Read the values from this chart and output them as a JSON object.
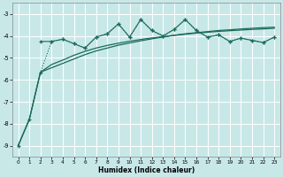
{
  "xlabel": "Humidex (Indice chaleur)",
  "bg_color": "#c8e8e8",
  "grid_color": "#ffffff",
  "line_color": "#1a6b5a",
  "xlim": [
    -0.5,
    23.5
  ],
  "ylim": [
    -9.5,
    -2.5
  ],
  "yticks": [
    -9,
    -8,
    -7,
    -6,
    -5,
    -4,
    -3
  ],
  "xticks": [
    0,
    1,
    2,
    3,
    4,
    5,
    6,
    7,
    8,
    9,
    10,
    11,
    12,
    13,
    14,
    15,
    16,
    17,
    18,
    19,
    20,
    21,
    22,
    23
  ],
  "noisy_x": [
    0,
    1,
    2,
    3,
    4,
    5,
    6,
    7,
    8,
    9,
    10,
    11,
    12,
    13,
    14,
    15,
    16,
    17,
    18,
    19,
    20,
    21,
    22,
    23
  ],
  "noisy_y": [
    -9.0,
    -7.8,
    -5.65,
    -4.25,
    -4.15,
    -4.35,
    -4.55,
    -4.05,
    -3.9,
    -3.45,
    -4.05,
    -3.25,
    -3.75,
    -4.0,
    -3.7,
    -3.25,
    -3.75,
    -4.05,
    -3.95,
    -4.25,
    -4.1,
    -4.2,
    -4.3,
    -4.05
  ],
  "smooth1_x": [
    0,
    1,
    2,
    3,
    4,
    5,
    6,
    7,
    8,
    9,
    10,
    11,
    12,
    13,
    14,
    15,
    16,
    17,
    18,
    19,
    20,
    21,
    22,
    23
  ],
  "smooth1_y": [
    -9.0,
    -7.8,
    -5.65,
    -5.45,
    -5.25,
    -5.05,
    -4.85,
    -4.68,
    -4.55,
    -4.42,
    -4.32,
    -4.22,
    -4.13,
    -4.05,
    -3.97,
    -3.9,
    -3.85,
    -3.8,
    -3.75,
    -3.72,
    -3.68,
    -3.65,
    -3.62,
    -3.6
  ],
  "flat_x": [
    2,
    3,
    4,
    5,
    6,
    7,
    8,
    9,
    10,
    11,
    12,
    13,
    14,
    15,
    16,
    17,
    18,
    19,
    20,
    21,
    22,
    23
  ],
  "flat_y": [
    -4.25,
    -4.25,
    -4.15,
    -4.35,
    -4.55,
    -4.05,
    -3.9,
    -3.45,
    -4.05,
    -3.25,
    -3.75,
    -4.0,
    -3.7,
    -3.25,
    -3.75,
    -4.05,
    -3.95,
    -4.25,
    -4.1,
    -4.2,
    -4.3,
    -4.05
  ],
  "smooth2_x": [
    0,
    1,
    2,
    3,
    4,
    5,
    6,
    7,
    8,
    9,
    10,
    11,
    12,
    13,
    14,
    15,
    16,
    17,
    18,
    19,
    20,
    21,
    22,
    23
  ],
  "smooth2_y": [
    -9.0,
    -7.8,
    -5.65,
    -5.3,
    -5.1,
    -4.88,
    -4.7,
    -4.55,
    -4.43,
    -4.33,
    -4.24,
    -4.16,
    -4.09,
    -4.03,
    -3.97,
    -3.92,
    -3.87,
    -3.83,
    -3.79,
    -3.76,
    -3.73,
    -3.7,
    -3.68,
    -3.65
  ]
}
